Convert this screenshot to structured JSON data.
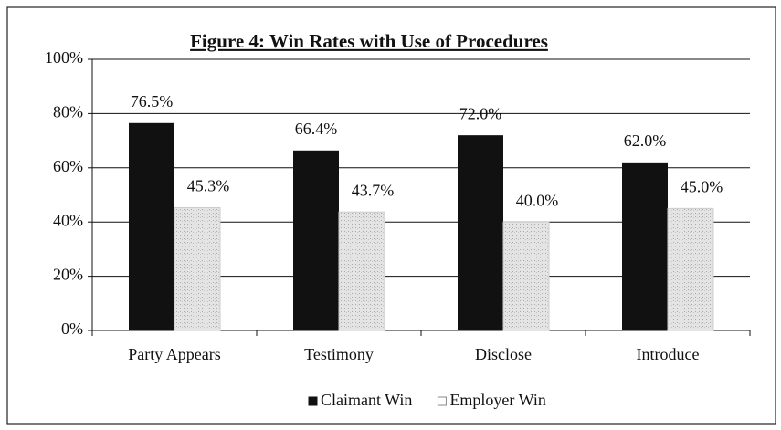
{
  "chart_data": {
    "type": "bar",
    "title": "Figure 4: Win Rates with Use of Procedures",
    "categories": [
      "Party Appears",
      "Testimony",
      "Disclose",
      "Introduce"
    ],
    "series": [
      {
        "name": "Claimant Win",
        "color": "#111111",
        "values": [
          76.5,
          66.4,
          72.0,
          62.0
        ],
        "value_labels": [
          "76.5%",
          "66.4%",
          "72.0%",
          "62.0%"
        ]
      },
      {
        "name": "Employer Win",
        "color": "#e2e2e2",
        "values": [
          45.3,
          43.7,
          40.0,
          45.0
        ],
        "value_labels": [
          "45.3%",
          "43.7%",
          "40.0%",
          "45.0%"
        ]
      }
    ],
    "ylim": [
      0,
      100
    ],
    "yticks": [
      {
        "value": 0,
        "label": "0%"
      },
      {
        "value": 20,
        "label": "20%"
      },
      {
        "value": 40,
        "label": "40%"
      },
      {
        "value": 60,
        "label": "60%"
      },
      {
        "value": 80,
        "label": "80%"
      },
      {
        "value": 100,
        "label": "100%"
      }
    ],
    "grid": true,
    "legend": "bottom"
  }
}
